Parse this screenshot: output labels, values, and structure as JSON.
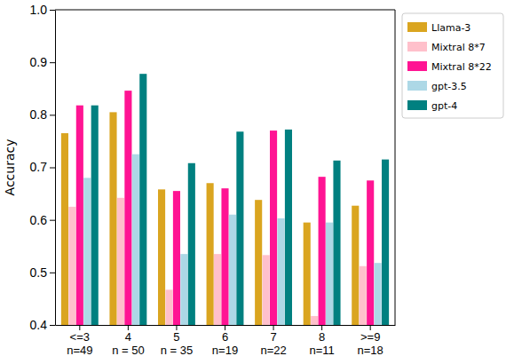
{
  "chart_data": {
    "type": "bar",
    "y_label": "Accuracy",
    "categories": [
      "<=3\nn=49",
      "4\nn = 50",
      "5\nn = 35",
      "6\nn=19",
      "7\nn=22",
      "8\nn=11",
      ">=9\nn=18"
    ],
    "series": [
      {
        "name": "Llama-3",
        "color": "#daa520",
        "values": [
          0.765,
          0.805,
          0.658,
          0.67,
          0.638,
          0.595,
          0.627
        ]
      },
      {
        "name": "Mixtral 8*7",
        "color": "#ffc0cb",
        "values": [
          0.625,
          0.642,
          0.467,
          0.535,
          0.533,
          0.417,
          0.512
        ]
      },
      {
        "name": "Mixtral 8*22",
        "color": "#ff1493",
        "values": [
          0.818,
          0.846,
          0.655,
          0.66,
          0.77,
          0.682,
          0.675
        ]
      },
      {
        "name": "gpt-3.5",
        "color": "#add8e6",
        "values": [
          0.68,
          0.725,
          0.535,
          0.61,
          0.603,
          0.595,
          0.518
        ]
      },
      {
        "name": "gpt-4",
        "color": "#008080",
        "values": [
          0.818,
          0.878,
          0.708,
          0.768,
          0.772,
          0.713,
          0.715
        ]
      }
    ],
    "ylim": [
      0.4,
      1.0
    ],
    "yticks": [
      0.4,
      0.5,
      0.6,
      0.7,
      0.8,
      0.9,
      {
        "value": 1.0,
        "label": "1.0"
      }
    ],
    "grid": false,
    "legend": "right"
  }
}
